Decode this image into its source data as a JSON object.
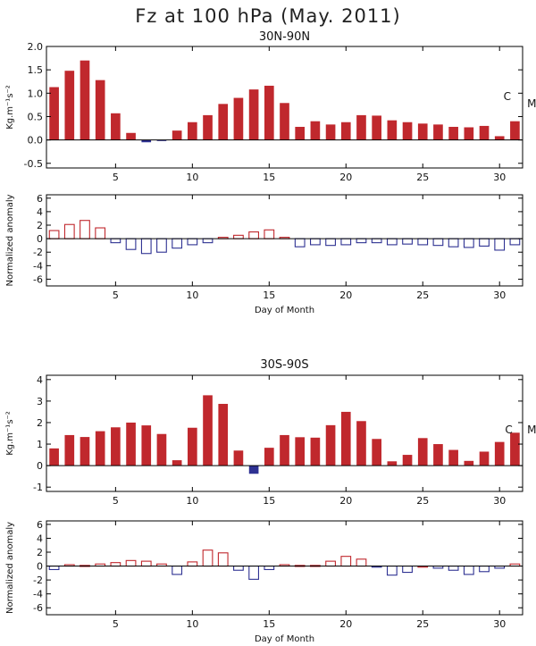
{
  "title": "Fz at 100 hPa (May. 2011)",
  "colors": {
    "positive": "#c0282d",
    "negative": "#2e3192",
    "axis": "#000000"
  },
  "chart_data": [
    {
      "id": "nh-flux",
      "type": "bar",
      "title": "30N-90N",
      "ylabel": "Kg.m⁻¹s⁻²",
      "xlabel": "",
      "filled": true,
      "xlim": [
        0.5,
        31.5
      ],
      "ylim": [
        -0.6,
        2.0
      ],
      "yticks": [
        "2.0",
        "1.5",
        "1.0",
        "0.5",
        "0.0",
        "-0.5"
      ],
      "yticks_values": [
        2.0,
        1.5,
        1.0,
        0.5,
        0.0,
        -0.5
      ],
      "xticks": [
        "5",
        "10",
        "15",
        "20",
        "25",
        "30"
      ],
      "xticks_values": [
        5,
        10,
        15,
        20,
        25,
        30
      ],
      "x": [
        1,
        2,
        3,
        4,
        5,
        6,
        7,
        8,
        9,
        10,
        11,
        12,
        13,
        14,
        15,
        16,
        17,
        18,
        19,
        20,
        21,
        22,
        23,
        24,
        25,
        26,
        27,
        28,
        29,
        30,
        31
      ],
      "values": [
        1.13,
        1.48,
        1.7,
        1.28,
        0.57,
        0.15,
        -0.05,
        -0.02,
        0.2,
        0.38,
        0.53,
        0.77,
        0.9,
        1.08,
        1.16,
        0.79,
        0.28,
        0.4,
        0.33,
        0.38,
        0.53,
        0.52,
        0.42,
        0.38,
        0.35,
        0.33,
        0.28,
        0.27,
        0.3,
        0.08,
        0.4
      ],
      "annotations": [
        {
          "text": "C",
          "x": 30.5,
          "y": 0.85
        },
        {
          "text": "M",
          "x": 32.1,
          "y": 0.7
        }
      ]
    },
    {
      "id": "nh-anomaly",
      "type": "bar",
      "title": "",
      "ylabel": "Normalized anomaly",
      "xlabel": "Day of Month",
      "filled": false,
      "xlim": [
        0.5,
        31.5
      ],
      "ylim": [
        -7,
        6.5
      ],
      "yticks": [
        "6",
        "4",
        "2",
        "0",
        "-2",
        "-4",
        "-6"
      ],
      "yticks_values": [
        6,
        4,
        2,
        0,
        -2,
        -4,
        -6
      ],
      "xticks": [
        "5",
        "10",
        "15",
        "20",
        "25",
        "30"
      ],
      "xticks_values": [
        5,
        10,
        15,
        20,
        25,
        30
      ],
      "x": [
        1,
        2,
        3,
        4,
        5,
        6,
        7,
        8,
        9,
        10,
        11,
        12,
        13,
        14,
        15,
        16,
        17,
        18,
        19,
        20,
        21,
        22,
        23,
        24,
        25,
        26,
        27,
        28,
        29,
        30,
        31
      ],
      "values": [
        1.2,
        2.1,
        2.7,
        1.6,
        -0.6,
        -1.6,
        -2.2,
        -2.0,
        -1.4,
        -0.9,
        -0.6,
        0.2,
        0.5,
        1.0,
        1.3,
        0.2,
        -1.2,
        -0.9,
        -1.0,
        -0.9,
        -0.6,
        -0.6,
        -0.9,
        -0.8,
        -0.9,
        -1.0,
        -1.2,
        -1.3,
        -1.1,
        -1.7,
        -0.9
      ]
    },
    {
      "id": "sh-flux",
      "type": "bar",
      "title": "30S-90S",
      "ylabel": "Kg.m⁻¹s⁻²",
      "xlabel": "",
      "filled": true,
      "xlim": [
        0.5,
        31.5
      ],
      "ylim": [
        -1.2,
        4.2
      ],
      "yticks": [
        "4",
        "3",
        "2",
        "1",
        "0",
        "-1"
      ],
      "yticks_values": [
        4,
        3,
        2,
        1,
        0,
        -1
      ],
      "xticks": [
        "5",
        "10",
        "15",
        "20",
        "25",
        "30"
      ],
      "xticks_values": [
        5,
        10,
        15,
        20,
        25,
        30
      ],
      "x": [
        1,
        2,
        3,
        4,
        5,
        6,
        7,
        8,
        9,
        10,
        11,
        12,
        13,
        14,
        15,
        16,
        17,
        18,
        19,
        20,
        21,
        22,
        23,
        24,
        25,
        26,
        27,
        28,
        29,
        30,
        31
      ],
      "values": [
        0.8,
        1.42,
        1.33,
        1.6,
        1.78,
        2.0,
        1.87,
        1.47,
        0.25,
        1.76,
        3.27,
        2.87,
        0.7,
        -0.38,
        0.83,
        1.42,
        1.32,
        1.3,
        1.88,
        2.5,
        2.07,
        1.24,
        0.2,
        0.5,
        1.28,
        1.0,
        0.73,
        0.22,
        0.65,
        1.1,
        1.53
      ],
      "annotations": [
        {
          "text": "C",
          "x": 30.6,
          "y": 1.5
        },
        {
          "text": "M",
          "x": 32.1,
          "y": 1.5
        }
      ]
    },
    {
      "id": "sh-anomaly",
      "type": "bar",
      "title": "",
      "ylabel": "Normalized anomaly",
      "xlabel": "Day of Month",
      "filled": false,
      "xlim": [
        0.5,
        31.5
      ],
      "ylim": [
        -7,
        6.5
      ],
      "yticks": [
        "6",
        "4",
        "2",
        "0",
        "-2",
        "-4",
        "-6"
      ],
      "yticks_values": [
        6,
        4,
        2,
        0,
        -2,
        -4,
        -6
      ],
      "xticks": [
        "5",
        "10",
        "15",
        "20",
        "25",
        "30"
      ],
      "xticks_values": [
        5,
        10,
        15,
        20,
        25,
        30
      ],
      "x": [
        1,
        2,
        3,
        4,
        5,
        6,
        7,
        8,
        9,
        10,
        11,
        12,
        13,
        14,
        15,
        16,
        17,
        18,
        19,
        20,
        21,
        22,
        23,
        24,
        25,
        26,
        27,
        28,
        29,
        30,
        31
      ],
      "values": [
        -0.5,
        0.2,
        0.1,
        0.3,
        0.5,
        0.8,
        0.7,
        0.3,
        -1.2,
        0.6,
        2.3,
        1.9,
        -0.6,
        -1.9,
        -0.5,
        0.2,
        0.1,
        0.1,
        0.7,
        1.4,
        1.0,
        -0.1,
        -1.3,
        -0.9,
        0.0,
        -0.3,
        -0.6,
        -1.2,
        -0.8,
        -0.3,
        0.3
      ]
    }
  ]
}
